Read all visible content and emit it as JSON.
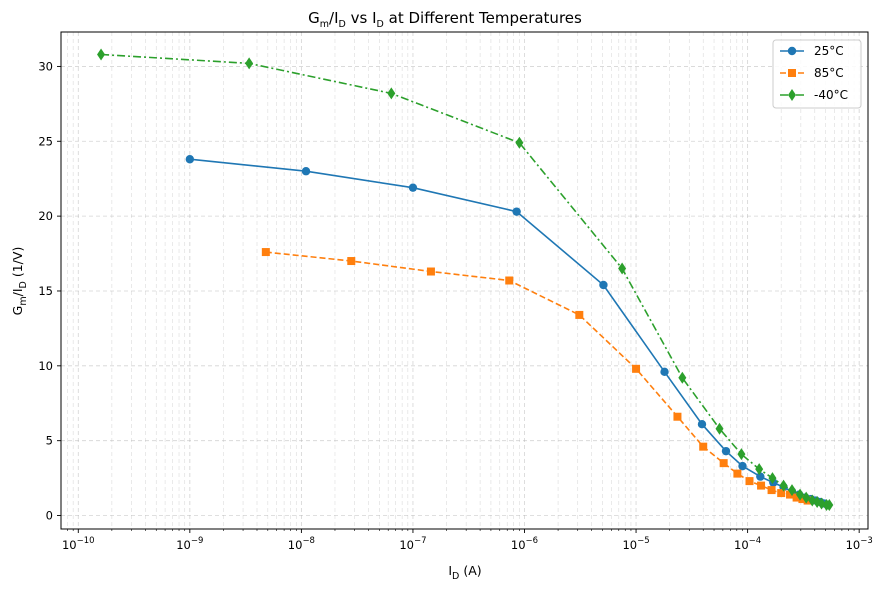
{
  "chart_data": {
    "type": "line",
    "title_parts": [
      "G",
      "m",
      "/",
      "I",
      "D",
      " vs ",
      "I",
      "D",
      " at Different Temperatures"
    ],
    "xlabel_parts": [
      "I",
      "D",
      " (A)"
    ],
    "ylabel_parts": [
      "G",
      "m",
      "/",
      "I",
      "D",
      " (1/V)"
    ],
    "x_scale": "log",
    "xlim": [
      7e-11,
      0.0012
    ],
    "ylim": [
      -0.9,
      32.3
    ],
    "x_ticks": [
      {
        "value": 1e-10,
        "base": "10",
        "exp": "−10"
      },
      {
        "value": 1e-09,
        "base": "10",
        "exp": "−9"
      },
      {
        "value": 1e-08,
        "base": "10",
        "exp": "−8"
      },
      {
        "value": 1e-07,
        "base": "10",
        "exp": "−7"
      },
      {
        "value": 1e-06,
        "base": "10",
        "exp": "−6"
      },
      {
        "value": 1e-05,
        "base": "10",
        "exp": "−5"
      },
      {
        "value": 0.0001,
        "base": "10",
        "exp": "−4"
      },
      {
        "value": 0.001,
        "base": "10",
        "exp": "−3"
      }
    ],
    "y_ticks": [
      {
        "value": 0,
        "label": "0"
      },
      {
        "value": 5,
        "label": "5"
      },
      {
        "value": 10,
        "label": "10"
      },
      {
        "value": 15,
        "label": "15"
      },
      {
        "value": 20,
        "label": "20"
      },
      {
        "value": 25,
        "label": "25"
      },
      {
        "value": 30,
        "label": "30"
      }
    ],
    "grid": true,
    "legend_position": "top-right",
    "series": [
      {
        "name": "25°C",
        "color": "#1f77b4",
        "marker": "circle",
        "line_style": "solid",
        "x": [
          1e-09,
          1.1e-08,
          1e-07,
          8.5e-07,
          5.1e-06,
          1.8e-05,
          3.9e-05,
          6.4e-05,
          9e-05,
          0.00013,
          0.00017,
          0.00021,
          0.00025,
          0.00029,
          0.00033,
          0.00037,
          0.00041,
          0.00045,
          0.00049
        ],
        "y": [
          23.8,
          23.0,
          21.9,
          20.3,
          15.4,
          9.6,
          6.1,
          4.3,
          3.3,
          2.6,
          2.2,
          1.9,
          1.6,
          1.4,
          1.2,
          1.1,
          1.0,
          0.9,
          0.8
        ]
      },
      {
        "name": "85°C",
        "color": "#ff7f0e",
        "marker": "square",
        "line_style": "dashed",
        "x": [
          4.8e-09,
          2.8e-08,
          1.45e-07,
          7.3e-07,
          3.1e-06,
          1e-05,
          2.35e-05,
          4e-05,
          6.1e-05,
          8.1e-05,
          0.000104,
          0.000132,
          0.000164,
          0.0002,
          0.00024,
          0.000275,
          0.00031,
          0.000345
        ],
        "y": [
          17.6,
          17.0,
          16.3,
          15.7,
          13.4,
          9.8,
          6.6,
          4.6,
          3.5,
          2.8,
          2.3,
          2.0,
          1.7,
          1.5,
          1.4,
          1.2,
          1.1,
          1.0
        ]
      },
      {
        "name": "-40°C",
        "color": "#2ca02c",
        "marker": "diamond",
        "line_style": "dashdot",
        "x": [
          1.6e-10,
          3.4e-09,
          6.4e-08,
          9e-07,
          7.5e-06,
          2.6e-05,
          5.6e-05,
          8.8e-05,
          0.000127,
          0.000167,
          0.00021,
          0.00025,
          0.000295,
          0.000335,
          0.00038,
          0.00042,
          0.00046,
          0.00051,
          0.00054
        ],
        "y": [
          30.8,
          30.2,
          28.2,
          24.9,
          16.5,
          9.2,
          5.8,
          4.1,
          3.1,
          2.5,
          2.0,
          1.7,
          1.4,
          1.2,
          1.0,
          0.9,
          0.8,
          0.7,
          0.7
        ]
      }
    ]
  }
}
